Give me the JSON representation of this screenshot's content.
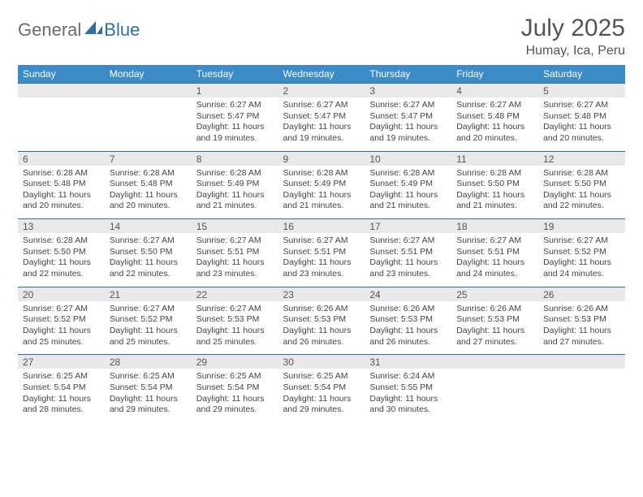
{
  "logo": {
    "general": "General",
    "blue": "Blue"
  },
  "title": "July 2025",
  "subtitle": "Humay, Ica, Peru",
  "colors": {
    "header_bar": "#3b8bc9",
    "week_border": "#2f6fa8",
    "num_bg": "#e9e9e9",
    "logo_gray": "#6b6b6b",
    "logo_blue": "#2f6fa8"
  },
  "daynames": [
    "Sunday",
    "Monday",
    "Tuesday",
    "Wednesday",
    "Thursday",
    "Friday",
    "Saturday"
  ],
  "weeks": [
    [
      null,
      null,
      {
        "n": "1",
        "sr": "6:27 AM",
        "ss": "5:47 PM",
        "dl": "11 hours and 19 minutes."
      },
      {
        "n": "2",
        "sr": "6:27 AM",
        "ss": "5:47 PM",
        "dl": "11 hours and 19 minutes."
      },
      {
        "n": "3",
        "sr": "6:27 AM",
        "ss": "5:47 PM",
        "dl": "11 hours and 19 minutes."
      },
      {
        "n": "4",
        "sr": "6:27 AM",
        "ss": "5:48 PM",
        "dl": "11 hours and 20 minutes."
      },
      {
        "n": "5",
        "sr": "6:27 AM",
        "ss": "5:48 PM",
        "dl": "11 hours and 20 minutes."
      }
    ],
    [
      {
        "n": "6",
        "sr": "6:28 AM",
        "ss": "5:48 PM",
        "dl": "11 hours and 20 minutes."
      },
      {
        "n": "7",
        "sr": "6:28 AM",
        "ss": "5:48 PM",
        "dl": "11 hours and 20 minutes."
      },
      {
        "n": "8",
        "sr": "6:28 AM",
        "ss": "5:49 PM",
        "dl": "11 hours and 21 minutes."
      },
      {
        "n": "9",
        "sr": "6:28 AM",
        "ss": "5:49 PM",
        "dl": "11 hours and 21 minutes."
      },
      {
        "n": "10",
        "sr": "6:28 AM",
        "ss": "5:49 PM",
        "dl": "11 hours and 21 minutes."
      },
      {
        "n": "11",
        "sr": "6:28 AM",
        "ss": "5:50 PM",
        "dl": "11 hours and 21 minutes."
      },
      {
        "n": "12",
        "sr": "6:28 AM",
        "ss": "5:50 PM",
        "dl": "11 hours and 22 minutes."
      }
    ],
    [
      {
        "n": "13",
        "sr": "6:28 AM",
        "ss": "5:50 PM",
        "dl": "11 hours and 22 minutes."
      },
      {
        "n": "14",
        "sr": "6:27 AM",
        "ss": "5:50 PM",
        "dl": "11 hours and 22 minutes."
      },
      {
        "n": "15",
        "sr": "6:27 AM",
        "ss": "5:51 PM",
        "dl": "11 hours and 23 minutes."
      },
      {
        "n": "16",
        "sr": "6:27 AM",
        "ss": "5:51 PM",
        "dl": "11 hours and 23 minutes."
      },
      {
        "n": "17",
        "sr": "6:27 AM",
        "ss": "5:51 PM",
        "dl": "11 hours and 23 minutes."
      },
      {
        "n": "18",
        "sr": "6:27 AM",
        "ss": "5:51 PM",
        "dl": "11 hours and 24 minutes."
      },
      {
        "n": "19",
        "sr": "6:27 AM",
        "ss": "5:52 PM",
        "dl": "11 hours and 24 minutes."
      }
    ],
    [
      {
        "n": "20",
        "sr": "6:27 AM",
        "ss": "5:52 PM",
        "dl": "11 hours and 25 minutes."
      },
      {
        "n": "21",
        "sr": "6:27 AM",
        "ss": "5:52 PM",
        "dl": "11 hours and 25 minutes."
      },
      {
        "n": "22",
        "sr": "6:27 AM",
        "ss": "5:53 PM",
        "dl": "11 hours and 25 minutes."
      },
      {
        "n": "23",
        "sr": "6:26 AM",
        "ss": "5:53 PM",
        "dl": "11 hours and 26 minutes."
      },
      {
        "n": "24",
        "sr": "6:26 AM",
        "ss": "5:53 PM",
        "dl": "11 hours and 26 minutes."
      },
      {
        "n": "25",
        "sr": "6:26 AM",
        "ss": "5:53 PM",
        "dl": "11 hours and 27 minutes."
      },
      {
        "n": "26",
        "sr": "6:26 AM",
        "ss": "5:53 PM",
        "dl": "11 hours and 27 minutes."
      }
    ],
    [
      {
        "n": "27",
        "sr": "6:25 AM",
        "ss": "5:54 PM",
        "dl": "11 hours and 28 minutes."
      },
      {
        "n": "28",
        "sr": "6:25 AM",
        "ss": "5:54 PM",
        "dl": "11 hours and 29 minutes."
      },
      {
        "n": "29",
        "sr": "6:25 AM",
        "ss": "5:54 PM",
        "dl": "11 hours and 29 minutes."
      },
      {
        "n": "30",
        "sr": "6:25 AM",
        "ss": "5:54 PM",
        "dl": "11 hours and 29 minutes."
      },
      {
        "n": "31",
        "sr": "6:24 AM",
        "ss": "5:55 PM",
        "dl": "11 hours and 30 minutes."
      },
      null,
      null
    ]
  ],
  "labels": {
    "sunrise": "Sunrise: ",
    "sunset": "Sunset: ",
    "daylight": "Daylight: "
  }
}
